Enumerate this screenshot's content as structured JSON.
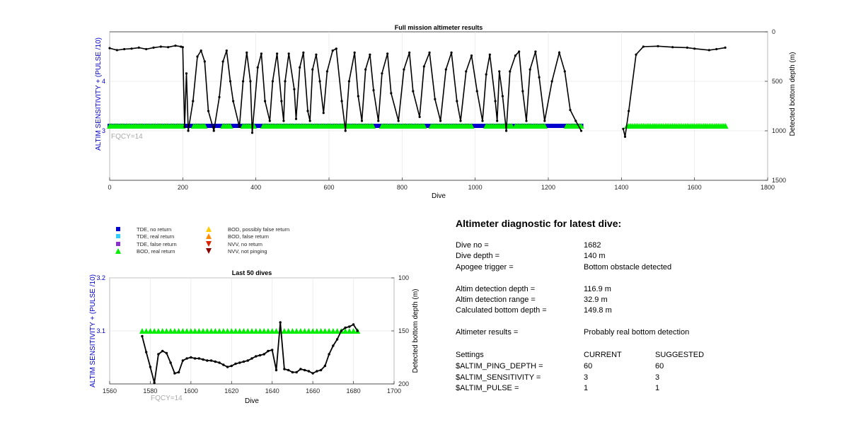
{
  "chart_data": [
    {
      "type": "scatter",
      "title": "Full mission altimeter results",
      "xlabel": "Dive",
      "ylabel_left": "ALTIM SENSITIVITY + (PULSE /10)",
      "ylabel_right": "Detected bottom depth (m)",
      "xlim": [
        0,
        1800
      ],
      "ylim_left": [
        2,
        5
      ],
      "ylim_right": [
        1500,
        0
      ],
      "xticks": [
        "0",
        "200",
        "400",
        "600",
        "800",
        "1000",
        "1200",
        "1400",
        "1600",
        "1800"
      ],
      "yticks_left": [
        "3",
        "4"
      ],
      "yticks_right": [
        "0",
        "500",
        "1000",
        "1500"
      ],
      "annotation": "FQCY=14",
      "grid": true,
      "series": [
        {
          "name": "BOD, real return",
          "color": "#00ee00",
          "marker": "triangle",
          "x_ranges": [
            [
              0,
              200
            ],
            [
              230,
              260
            ],
            [
              310,
              330
            ],
            [
              365,
              395
            ],
            [
              420,
              720
            ],
            [
              745,
              860
            ],
            [
              880,
              990
            ],
            [
              1030,
              1100
            ],
            [
              1110,
              1190
            ],
            [
              1250,
              1290
            ],
            [
              1415,
              1685
            ]
          ],
          "y": 3.1
        },
        {
          "name": "TDE, no return",
          "color": "#0000cc",
          "marker": "square",
          "x_ranges": [
            [
              0,
              200
            ],
            [
              205,
              290
            ],
            [
              300,
              1290
            ]
          ],
          "y": 3.1
        },
        {
          "name": "Detected bottom depth",
          "color": "#000000",
          "marker": "line+dot",
          "note": "stepped segments read from plot",
          "points": [
            [
              0,
              165
            ],
            [
              20,
              185
            ],
            [
              40,
              175
            ],
            [
              60,
              170
            ],
            [
              80,
              160
            ],
            [
              100,
              175
            ],
            [
              120,
              160
            ],
            [
              140,
              150
            ],
            [
              160,
              155
            ],
            [
              180,
              140
            ],
            [
              195,
              150
            ],
            [
              200,
              155
            ],
            [
              205,
              960
            ],
            [
              210,
              420
            ],
            [
              215,
              1000
            ],
            [
              228,
              700
            ],
            [
              240,
              250
            ],
            [
              250,
              190
            ],
            [
              260,
              300
            ],
            [
              270,
              800
            ],
            [
              285,
              1000
            ],
            [
              300,
              660
            ],
            [
              310,
              300
            ],
            [
              320,
              190
            ],
            [
              330,
              500
            ],
            [
              338,
              700
            ],
            [
              355,
              960
            ],
            [
              365,
              500
            ],
            [
              375,
              210
            ],
            [
              385,
              500
            ],
            [
              390,
              1020
            ],
            [
              405,
              360
            ],
            [
              415,
              220
            ],
            [
              425,
              700
            ],
            [
              438,
              900
            ],
            [
              446,
              500
            ],
            [
              458,
              220
            ],
            [
              470,
              700
            ],
            [
              476,
              900
            ],
            [
              480,
              500
            ],
            [
              490,
              220
            ],
            [
              505,
              580
            ],
            [
              510,
              880
            ],
            [
              520,
              360
            ],
            [
              530,
              210
            ],
            [
              542,
              800
            ],
            [
              548,
              900
            ],
            [
              555,
              380
            ],
            [
              565,
              230
            ],
            [
              575,
              500
            ],
            [
              585,
              820
            ],
            [
              595,
              400
            ],
            [
              610,
              190
            ],
            [
              620,
              170
            ],
            [
              635,
              700
            ],
            [
              645,
              1000
            ],
            [
              655,
              500
            ],
            [
              670,
              210
            ],
            [
              680,
              650
            ],
            [
              690,
              900
            ],
            [
              700,
              380
            ],
            [
              712,
              230
            ],
            [
              722,
              590
            ],
            [
              735,
              900
            ],
            [
              745,
              420
            ],
            [
              760,
              220
            ],
            [
              770,
              620
            ],
            [
              790,
              900
            ],
            [
              805,
              380
            ],
            [
              820,
              210
            ],
            [
              830,
              600
            ],
            [
              848,
              860
            ],
            [
              860,
              350
            ],
            [
              875,
              210
            ],
            [
              890,
              680
            ],
            [
              905,
              900
            ],
            [
              920,
              380
            ],
            [
              935,
              210
            ],
            [
              950,
              700
            ],
            [
              960,
              900
            ],
            [
              975,
              400
            ],
            [
              990,
              240
            ],
            [
              1005,
              600
            ],
            [
              1020,
              900
            ],
            [
              1030,
              430
            ],
            [
              1040,
              230
            ],
            [
              1055,
              700
            ],
            [
              1060,
              900
            ],
            [
              1066,
              400
            ],
            [
              1075,
              650
            ],
            [
              1085,
              1000
            ],
            [
              1095,
              400
            ],
            [
              1110,
              240
            ],
            [
              1120,
              200
            ],
            [
              1130,
              600
            ],
            [
              1140,
              900
            ],
            [
              1150,
              380
            ],
            [
              1165,
              200
            ],
            [
              1175,
              460
            ],
            [
              1190,
              900
            ],
            [
              1210,
              500
            ],
            [
              1230,
              210
            ],
            [
              1245,
              400
            ],
            [
              1260,
              790
            ],
            [
              1275,
              900
            ],
            [
              1290,
              1000
            ],
            [
              1405,
              980
            ],
            [
              1410,
              1060
            ],
            [
              1420,
              800
            ],
            [
              1440,
              230
            ],
            [
              1460,
              150
            ],
            [
              1500,
              145
            ],
            [
              1540,
              155
            ],
            [
              1580,
              160
            ],
            [
              1600,
              170
            ],
            [
              1640,
              185
            ],
            [
              1660,
              175
            ],
            [
              1684,
              160
            ]
          ]
        }
      ]
    },
    {
      "type": "line",
      "title": "Last 50 dives",
      "xlabel": "Dive",
      "ylabel_left": "ALTIM SENSITIVITY + (PULSE /10)",
      "ylabel_right": "Detected bottom depth (m)",
      "xlim": [
        1560,
        1700
      ],
      "ylim_left": [
        3.0,
        3.2
      ],
      "ylim_right": [
        200,
        100
      ],
      "xticks": [
        "1560",
        "1580",
        "1600",
        "1620",
        "1640",
        "1660",
        "1680",
        "1700"
      ],
      "yticks_left": [
        "3.1",
        "3.2"
      ],
      "yticks_right": [
        "100",
        "150",
        "200"
      ],
      "annotation": "FQCY=14",
      "grid": true,
      "sens_x": [
        1576,
        1578,
        1580,
        1582,
        1584,
        1586,
        1588,
        1590,
        1592,
        1594,
        1596,
        1598,
        1600,
        1602,
        1604,
        1606,
        1608,
        1610,
        1612,
        1614,
        1616,
        1618,
        1620,
        1622,
        1624,
        1626,
        1628,
        1630,
        1632,
        1634,
        1636,
        1638,
        1640,
        1642,
        1644,
        1646,
        1648,
        1650,
        1652,
        1654,
        1656,
        1658,
        1660,
        1662,
        1664,
        1666,
        1668,
        1670,
        1672,
        1674,
        1676,
        1678,
        1680,
        1682
      ],
      "sens_y": 3.1,
      "depth": [
        [
          1576,
          155
        ],
        [
          1578,
          170
        ],
        [
          1580,
          184
        ],
        [
          1582,
          199
        ],
        [
          1584,
          172
        ],
        [
          1586,
          169
        ],
        [
          1588,
          171
        ],
        [
          1590,
          180
        ],
        [
          1592,
          190
        ],
        [
          1594,
          189
        ],
        [
          1596,
          178
        ],
        [
          1598,
          176
        ],
        [
          1600,
          175
        ],
        [
          1602,
          176
        ],
        [
          1604,
          176
        ],
        [
          1606,
          177
        ],
        [
          1608,
          178
        ],
        [
          1610,
          178
        ],
        [
          1612,
          179
        ],
        [
          1614,
          180
        ],
        [
          1616,
          182
        ],
        [
          1618,
          184
        ],
        [
          1620,
          183
        ],
        [
          1622,
          181
        ],
        [
          1624,
          180
        ],
        [
          1626,
          179
        ],
        [
          1628,
          178
        ],
        [
          1630,
          176
        ],
        [
          1632,
          174
        ],
        [
          1634,
          173
        ],
        [
          1636,
          172
        ],
        [
          1638,
          169
        ],
        [
          1640,
          168
        ],
        [
          1642,
          187
        ],
        [
          1644,
          142
        ],
        [
          1646,
          186
        ],
        [
          1648,
          187
        ],
        [
          1650,
          189
        ],
        [
          1652,
          189
        ],
        [
          1654,
          186
        ],
        [
          1656,
          187
        ],
        [
          1658,
          188
        ],
        [
          1660,
          190
        ],
        [
          1662,
          188
        ],
        [
          1664,
          187
        ],
        [
          1666,
          183
        ],
        [
          1668,
          172
        ],
        [
          1670,
          164
        ],
        [
          1672,
          158
        ],
        [
          1674,
          150
        ],
        [
          1676,
          147
        ],
        [
          1678,
          146
        ],
        [
          1680,
          144
        ],
        [
          1682,
          150
        ]
      ]
    }
  ],
  "legend": {
    "items": [
      {
        "label": "TDE, no return",
        "color": "#0000cc",
        "marker": "square"
      },
      {
        "label": "TDE, real return",
        "color": "#33ccff",
        "marker": "square"
      },
      {
        "label": "TDE, false return",
        "color": "#8833cc",
        "marker": "square"
      },
      {
        "label": "BOD, real return",
        "color": "#00ee00",
        "marker": "triangle-up"
      },
      {
        "label": "BOD, possibly false return",
        "color": "#ffcc00",
        "marker": "triangle-up"
      },
      {
        "label": "BOD, false return",
        "color": "#ff8800",
        "marker": "triangle-up"
      },
      {
        "label": "NVV, no return",
        "color": "#dd2200",
        "marker": "triangle-down"
      },
      {
        "label": "NVV, not pinging",
        "color": "#880000",
        "marker": "triangle-down"
      }
    ]
  },
  "diagnostic": {
    "title": "Altimeter diagnostic for latest dive:",
    "rows": [
      {
        "label": "Dive no =",
        "value": "1682"
      },
      {
        "label": "Dive depth =",
        "value": "140 m"
      },
      {
        "label": "Apogee trigger =",
        "value": "Bottom obstacle detected"
      },
      {
        "label": "Altim detection depth =",
        "value": "116.9 m"
      },
      {
        "label": "Altim detection range =",
        "value": "32.9 m"
      },
      {
        "label": "Calculated bottom depth =",
        "value": "149.8 m"
      },
      {
        "label": "Altimeter results =",
        "value": "Probably real bottom detection"
      }
    ],
    "settings": {
      "header": [
        "Settings",
        "CURRENT",
        "SUGGESTED"
      ],
      "rows": [
        [
          "$ALTIM_PING_DEPTH =",
          "60",
          "60"
        ],
        [
          "$ALTIM_SENSITIVITY =",
          "3",
          "3"
        ],
        [
          "$ALTIM_PULSE =",
          "1",
          "1"
        ]
      ]
    }
  }
}
